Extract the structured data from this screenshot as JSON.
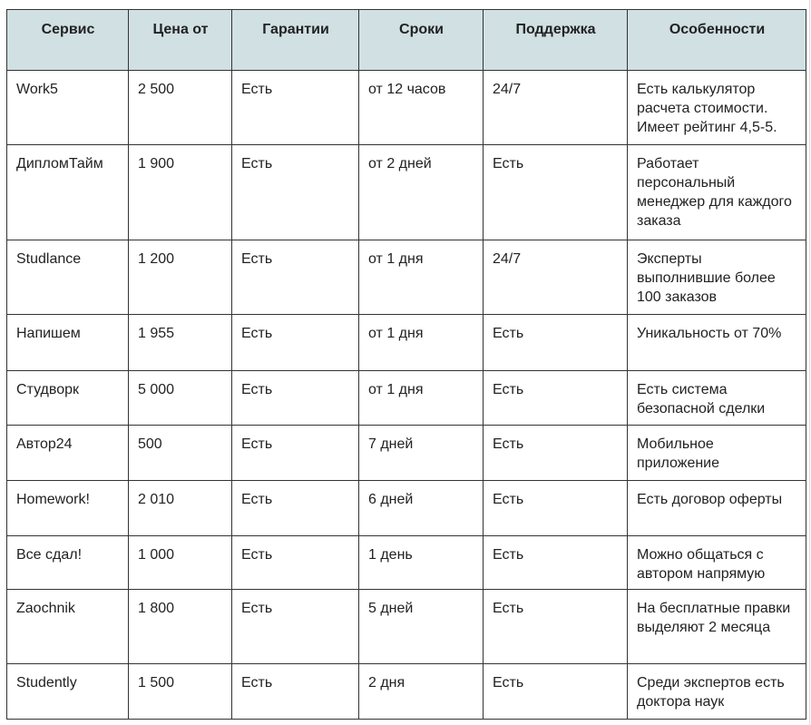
{
  "table": {
    "headers": [
      "Сервис",
      "Цена от",
      "Гарантии",
      "Сроки",
      "Поддержка",
      "Особенности"
    ],
    "rows": [
      [
        "Work5",
        "2 500",
        "Есть",
        "от 12 часов",
        "24/7",
        "Есть калькулятор расчета стоимости. Имеет рейтинг 4,5-5."
      ],
      [
        "ДипломТайм",
        "1 900",
        "Есть",
        "от 2 дней",
        "Есть",
        "Работает персональный менеджер для каждого заказа"
      ],
      [
        "Studlance",
        "1 200",
        "Есть",
        "от 1 дня",
        "24/7",
        "Эксперты выполнившие более 100 заказов"
      ],
      [
        "Напишем",
        "1 955",
        "Есть",
        "от 1 дня",
        "Есть",
        "Уникальность от 70%"
      ],
      [
        "Студворк",
        "5 000",
        "Есть",
        "от 1 дня",
        "Есть",
        "Есть система безопасной сделки"
      ],
      [
        "Автор24",
        "500",
        "Есть",
        "7 дней",
        "Есть",
        "Мобильное приложение"
      ],
      [
        "Homework!",
        "2 010",
        "Есть",
        "6 дней",
        "Есть",
        "Есть договор оферты"
      ],
      [
        "Все сдал!",
        "1 000",
        "Есть",
        "1 день",
        "Есть",
        "Можно общаться с автором напрямую"
      ],
      [
        "Zaochnik",
        "1 800",
        "Есть",
        "5 дней",
        "Есть",
        "На бесплатные правки выделяют 2 месяца"
      ],
      [
        "Studently",
        "1 500",
        "Есть",
        "2 дня",
        "Есть",
        "Среди экспертов есть доктора наук"
      ]
    ]
  },
  "colors": {
    "header_bg": "#d0e0e3",
    "border": "#333333"
  }
}
